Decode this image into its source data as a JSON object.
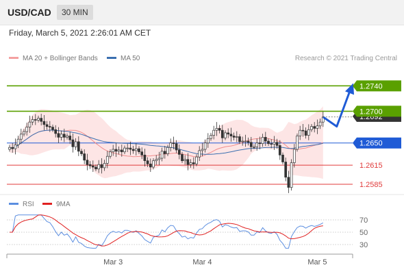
{
  "header": {
    "pair": "USD/CAD",
    "timeframe": "30 MIN",
    "datetime": "Friday, March 5, 2021 2:26:01 AM CET"
  },
  "legend": {
    "bollinger": {
      "label": "MA 20 + Bollinger Bands",
      "color": "#f4a0a0"
    },
    "ma50": {
      "label": "MA 50",
      "color": "#3a6fb0"
    },
    "credit": "Research © 2021 Trading Central"
  },
  "rsi_legend": {
    "rsi": {
      "label": "RSI",
      "color": "#5b8ee0"
    },
    "ma9": {
      "label": "9MA",
      "color": "#e02020"
    }
  },
  "chart_data": [
    {
      "type": "candlestick",
      "title": "USD/CAD",
      "x_labels": [
        "Mar 3",
        "Mar 4",
        "Mar 5"
      ],
      "ylim": [
        1.2572,
        1.2776
      ],
      "current_price": 1.2692,
      "levels": [
        {
          "value": 1.274,
          "label": "1.2740",
          "kind": "resistance",
          "color": "#5aa000"
        },
        {
          "value": 1.27,
          "label": "1.2700",
          "kind": "resistance",
          "color": "#5aa000"
        },
        {
          "value": 1.2692,
          "label": "1.2692",
          "kind": "last",
          "color": "#333333"
        },
        {
          "value": 1.265,
          "label": "1.2650",
          "kind": "pivot",
          "color": "#1f5bd6"
        },
        {
          "value": 1.2615,
          "label": "1.2615",
          "kind": "support",
          "color": "#e03a3a"
        },
        {
          "value": 1.2585,
          "label": "1.2585",
          "kind": "support",
          "color": "#e03a3a"
        }
      ],
      "close": [
        1.2643,
        1.2641,
        1.2647,
        1.2656,
        1.2664,
        1.2668,
        1.2675,
        1.2683,
        1.2687,
        1.2686,
        1.2689,
        1.2684,
        1.2679,
        1.2676,
        1.2675,
        1.2671,
        1.2665,
        1.2659,
        1.2664,
        1.2659,
        1.2661,
        1.2655,
        1.2644,
        1.2652,
        1.2637,
        1.2633,
        1.2623,
        1.2616,
        1.2614,
        1.2612,
        1.2609,
        1.2616,
        1.2611,
        1.2618,
        1.2629,
        1.2636,
        1.264,
        1.2637,
        1.2639,
        1.2636,
        1.2642,
        1.2642,
        1.264,
        1.2638,
        1.2641,
        1.2636,
        1.2631,
        1.2622,
        1.2617,
        1.2612,
        1.2622,
        1.2624,
        1.2626,
        1.2637,
        1.2633,
        1.2643,
        1.265,
        1.2649,
        1.2639,
        1.2632,
        1.2622,
        1.2624,
        1.2616,
        1.2619,
        1.2617,
        1.2628,
        1.2638,
        1.264,
        1.265,
        1.2657,
        1.2662,
        1.267,
        1.2673,
        1.267,
        1.2658,
        1.2666,
        1.2664,
        1.2661,
        1.2659,
        1.266,
        1.2652,
        1.2653,
        1.2653,
        1.2651,
        1.2644,
        1.2644,
        1.265,
        1.2649,
        1.2659,
        1.2653,
        1.2649,
        1.2648,
        1.2651,
        1.2646,
        1.2631,
        1.262,
        1.2596,
        1.258,
        1.2619,
        1.264,
        1.2661,
        1.267,
        1.2669,
        1.2662,
        1.2671,
        1.2676,
        1.2673,
        1.2677,
        1.2683,
        1.2691
      ],
      "rsi": {
        "levels": [
          70,
          50,
          30
        ],
        "ylim": [
          20,
          80
        ]
      },
      "series": [
        {
          "name": "MA 20 + Bollinger Bands"
        },
        {
          "name": "MA 50"
        },
        {
          "name": "RSI"
        },
        {
          "name": "9MA"
        }
      ]
    }
  ]
}
